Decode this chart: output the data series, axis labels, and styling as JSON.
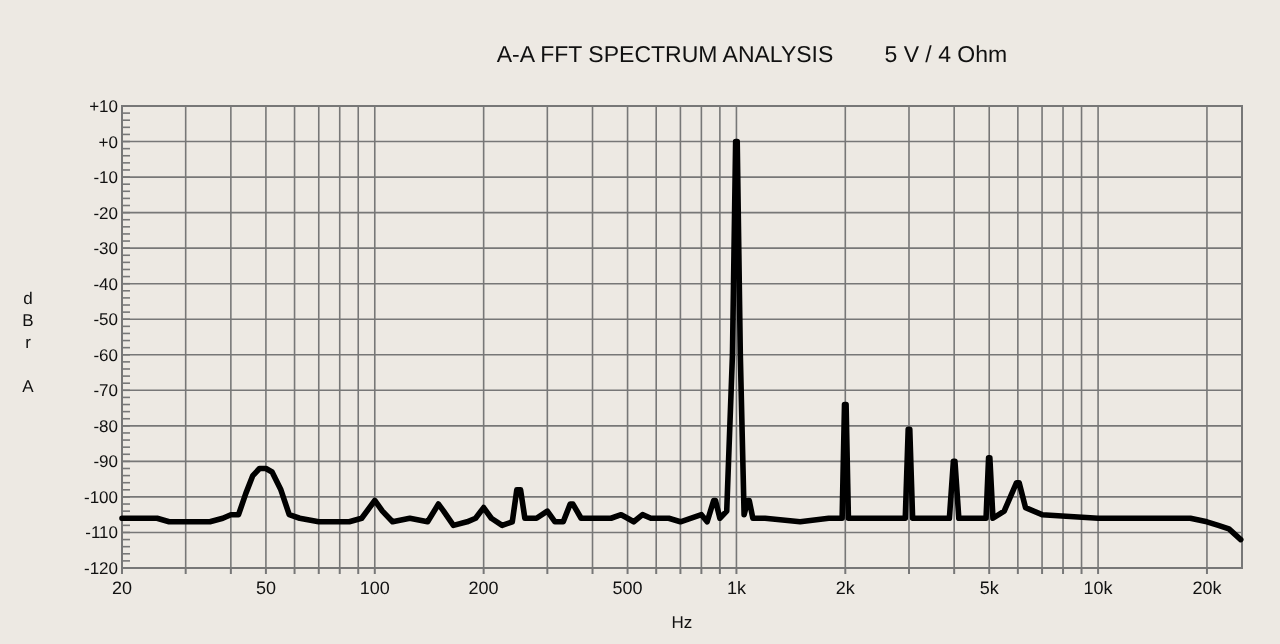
{
  "chart_data": {
    "type": "line",
    "title": "A-A FFT SPECTRUM ANALYSIS        5 V / 4 Ohm",
    "xlabel": "Hz",
    "ylabel": "dBr A",
    "log": "x",
    "grid": true,
    "marker": "none",
    "line_style": "solid",
    "xlim": [
      20,
      25000
    ],
    "ylim": [
      -120,
      10
    ],
    "xticks": [
      20,
      {
        "value": 30,
        "label": null
      },
      {
        "value": 40,
        "label": null
      },
      50,
      {
        "value": 60,
        "label": null
      },
      {
        "value": 70,
        "label": null
      },
      {
        "value": 80,
        "label": null
      },
      {
        "value": 90,
        "label": null
      },
      100,
      200,
      {
        "value": 300,
        "label": null
      },
      {
        "value": 400,
        "label": null
      },
      500,
      {
        "value": 600,
        "label": null
      },
      {
        "value": 700,
        "label": null
      },
      {
        "value": 800,
        "label": null
      },
      {
        "value": 900,
        "label": null
      },
      {
        "value": 1000,
        "label": "1k"
      },
      {
        "value": 2000,
        "label": "2k"
      },
      {
        "value": 3000,
        "label": null
      },
      {
        "value": 4000,
        "label": null
      },
      {
        "value": 5000,
        "label": "5k"
      },
      {
        "value": 6000,
        "label": null
      },
      {
        "value": 7000,
        "label": null
      },
      {
        "value": 8000,
        "label": null
      },
      {
        "value": 9000,
        "label": null
      },
      {
        "value": 10000,
        "label": "10k"
      },
      {
        "value": 20000,
        "label": "20k"
      }
    ],
    "yticks": [
      {
        "value": 10,
        "label": "+10"
      },
      {
        "value": 0,
        "label": "+0"
      },
      -10,
      -20,
      -30,
      -40,
      -50,
      -60,
      -70,
      -80,
      -90,
      -100,
      -110,
      -120
    ],
    "series": [
      {
        "color": "#000000",
        "x": [
          20,
          25,
          27,
          35,
          38,
          40,
          42,
          44,
          46,
          48,
          50,
          52,
          55,
          58,
          62,
          70,
          85,
          92,
          100,
          105,
          112,
          125,
          140,
          150,
          155,
          165,
          180,
          190,
          200,
          210,
          225,
          240,
          247,
          253,
          260,
          280,
          300,
          315,
          332,
          347,
          353,
          372,
          400,
          450,
          480,
          500,
          520,
          550,
          580,
          650,
          700,
          800,
          830,
          865,
          875,
          900,
          940,
          975,
          995,
          1005,
          1025,
          1050,
          1075,
          1085,
          1110,
          1200,
          1500,
          1800,
          1960,
          1990,
          2010,
          2040,
          2500,
          2930,
          2985,
          3015,
          3070,
          3600,
          3880,
          3980,
          4020,
          4120,
          4600,
          4900,
          4980,
          5020,
          5120,
          5500,
          5950,
          6050,
          6300,
          7000,
          10000,
          15000,
          18000,
          20000,
          21500,
          23000,
          24800
        ],
        "values": [
          -106,
          -106,
          -107,
          -107,
          -106,
          -105,
          -105,
          -99,
          -94,
          -92,
          -92,
          -93,
          -98,
          -105,
          -106,
          -107,
          -107,
          -106,
          -101,
          -104,
          -107,
          -106,
          -107,
          -102,
          -104,
          -108,
          -107,
          -106,
          -103,
          -106,
          -108,
          -107,
          -98,
          -98,
          -106,
          -106,
          -104,
          -107,
          -107,
          -102,
          -102,
          -106,
          -106,
          -106,
          -105,
          -106,
          -107,
          -105,
          -106,
          -106,
          -107,
          -105,
          -107,
          -101,
          -101,
          -106,
          -104,
          -60,
          0,
          0,
          -60,
          -105,
          -101,
          -101,
          -106,
          -106,
          -107,
          -106,
          -106,
          -74,
          -74,
          -106,
          -106,
          -106,
          -81,
          -81,
          -106,
          -106,
          -106,
          -90,
          -90,
          -106,
          -106,
          -106,
          -89,
          -89,
          -106,
          -104,
          -96,
          -96,
          -103,
          -105,
          -106,
          -106,
          -106,
          -107,
          -108,
          -109,
          -112
        ]
      }
    ]
  }
}
